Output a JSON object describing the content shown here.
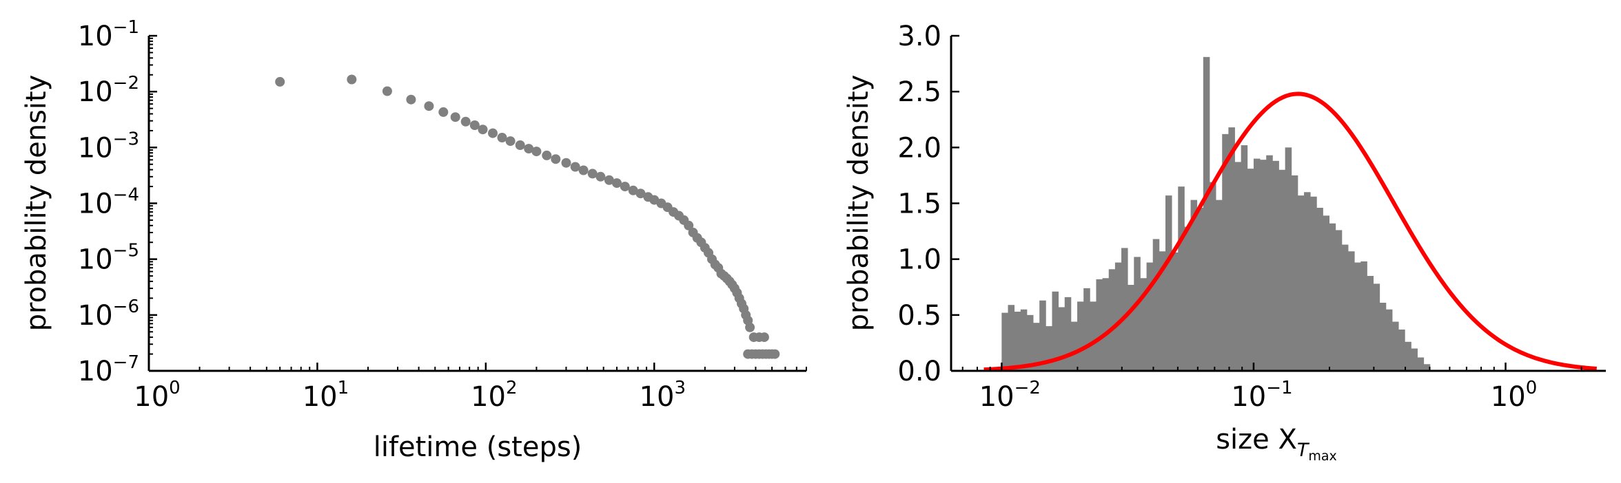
{
  "chart_data": [
    {
      "type": "scatter",
      "xlabel": "lifetime (steps)",
      "ylabel": "probability density",
      "xscale": "log",
      "yscale": "log",
      "xlim": [
        1,
        8000
      ],
      "ylim": [
        1e-07,
        0.1
      ],
      "x_ticks": [
        {
          "base": "10",
          "exp": "0",
          "value": 1
        },
        {
          "base": "10",
          "exp": "1",
          "value": 10
        },
        {
          "base": "10",
          "exp": "2",
          "value": 100
        },
        {
          "base": "10",
          "exp": "3",
          "value": 1000
        }
      ],
      "y_ticks": [
        {
          "base": "10",
          "exp": "−7",
          "value": 1e-07
        },
        {
          "base": "10",
          "exp": "−6",
          "value": 1e-06
        },
        {
          "base": "10",
          "exp": "−5",
          "value": 1e-05
        },
        {
          "base": "10",
          "exp": "−4",
          "value": 0.0001
        },
        {
          "base": "10",
          "exp": "−3",
          "value": 0.001
        },
        {
          "base": "10",
          "exp": "−2",
          "value": 0.01
        },
        {
          "base": "10",
          "exp": "−1",
          "value": 0.1
        }
      ],
      "marker_color": "#808080",
      "points": [
        [
          6,
          0.015
        ],
        [
          16,
          0.0165
        ],
        [
          26,
          0.0102
        ],
        [
          36,
          0.0072
        ],
        [
          46,
          0.0055
        ],
        [
          56,
          0.0043
        ],
        [
          66,
          0.0035
        ],
        [
          76,
          0.0029
        ],
        [
          86,
          0.0025
        ],
        [
          96,
          0.0021
        ],
        [
          110,
          0.0018
        ],
        [
          125,
          0.0015
        ],
        [
          140,
          0.0013
        ],
        [
          160,
          0.0011
        ],
        [
          180,
          0.00095
        ],
        [
          200,
          0.00085
        ],
        [
          230,
          0.00072
        ],
        [
          260,
          0.00062
        ],
        [
          300,
          0.00053
        ],
        [
          340,
          0.00045
        ],
        [
          380,
          0.00039
        ],
        [
          430,
          0.00034
        ],
        [
          480,
          0.0003
        ],
        [
          540,
          0.00026
        ],
        [
          600,
          0.00023
        ],
        [
          670,
          0.0002
        ],
        [
          750,
          0.00017
        ],
        [
          830,
          0.00015
        ],
        [
          920,
          0.00013
        ],
        [
          1000,
          0.000115
        ],
        [
          1100,
          0.0001
        ],
        [
          1200,
          8.5e-05
        ],
        [
          1300,
          7e-05
        ],
        [
          1400,
          6e-05
        ],
        [
          1500,
          5e-05
        ],
        [
          1600,
          4e-05
        ],
        [
          1700,
          3e-05
        ],
        [
          1800,
          2.4e-05
        ],
        [
          1900,
          2e-05
        ],
        [
          2000,
          1.6e-05
        ],
        [
          2100,
          1.3e-05
        ],
        [
          2200,
          1e-05
        ],
        [
          2300,
          8e-06
        ],
        [
          2400,
          7e-06
        ],
        [
          2500,
          5.5e-06
        ],
        [
          2600,
          5e-06
        ],
        [
          2700,
          4.5e-06
        ],
        [
          2800,
          4e-06
        ],
        [
          2900,
          3.5e-06
        ],
        [
          3000,
          3e-06
        ],
        [
          3100,
          2.5e-06
        ],
        [
          3200,
          2e-06
        ],
        [
          3300,
          1.6e-06
        ],
        [
          3400,
          1.3e-06
        ],
        [
          3500,
          1e-06
        ],
        [
          3600,
          8e-07
        ],
        [
          3700,
          6e-07
        ],
        [
          3900,
          4e-07
        ],
        [
          4200,
          4e-07
        ],
        [
          4500,
          4e-07
        ],
        [
          3600,
          2e-07
        ],
        [
          3800,
          2e-07
        ],
        [
          4000,
          2e-07
        ],
        [
          4200,
          2e-07
        ],
        [
          4400,
          2e-07
        ],
        [
          4600,
          2e-07
        ],
        [
          4800,
          2e-07
        ],
        [
          5000,
          2e-07
        ],
        [
          5200,
          2e-07
        ]
      ]
    },
    {
      "type": "histogram",
      "xlabel": "size X",
      "xlabel_subscript": "T",
      "xlabel_subsubscript": "max",
      "ylabel": "probability density",
      "xscale": "log",
      "xlim": [
        0.0063,
        2.5
      ],
      "ylim": [
        0,
        3.0
      ],
      "x_ticks": [
        {
          "base": "10",
          "exp": "−2",
          "value": 0.01
        },
        {
          "base": "10",
          "exp": "−1",
          "value": 0.1
        },
        {
          "base": "10",
          "exp": "0",
          "value": 1
        }
      ],
      "y_ticks": [
        "0.0",
        "0.5",
        "1.0",
        "1.5",
        "2.0",
        "2.5",
        "3.0"
      ],
      "bar_color": "#808080",
      "curve_color": "#ff0000",
      "bins_log10_start": -2,
      "bins_log10_width": 0.025,
      "values": [
        0.52,
        0.59,
        0.53,
        0.55,
        0.5,
        0.43,
        0.63,
        0.4,
        0.71,
        0.57,
        0.66,
        0.44,
        0.62,
        0.74,
        0.62,
        0.82,
        0.83,
        0.91,
        0.97,
        1.1,
        0.77,
        1.02,
        0.83,
        0.97,
        1.18,
        1.07,
        1.57,
        1.06,
        1.65,
        1.29,
        1.53,
        1.46,
        2.81,
        1.69,
        1.53,
        2.12,
        2.18,
        1.87,
        2.02,
        1.81,
        1.9,
        1.89,
        1.93,
        1.88,
        1.8,
        2.0,
        1.75,
        1.57,
        1.6,
        1.56,
        1.46,
        1.39,
        1.32,
        1.26,
        1.13,
        1.07,
        0.97,
        0.98,
        0.85,
        0.78,
        0.61,
        0.55,
        0.44,
        0.37,
        0.26,
        0.2,
        0.12,
        0.06
      ],
      "curve": {
        "mode_x": 0.15,
        "peak": 2.48,
        "sigma_log10": 0.38,
        "x_range": [
          0.0085,
          2.3
        ]
      }
    }
  ]
}
